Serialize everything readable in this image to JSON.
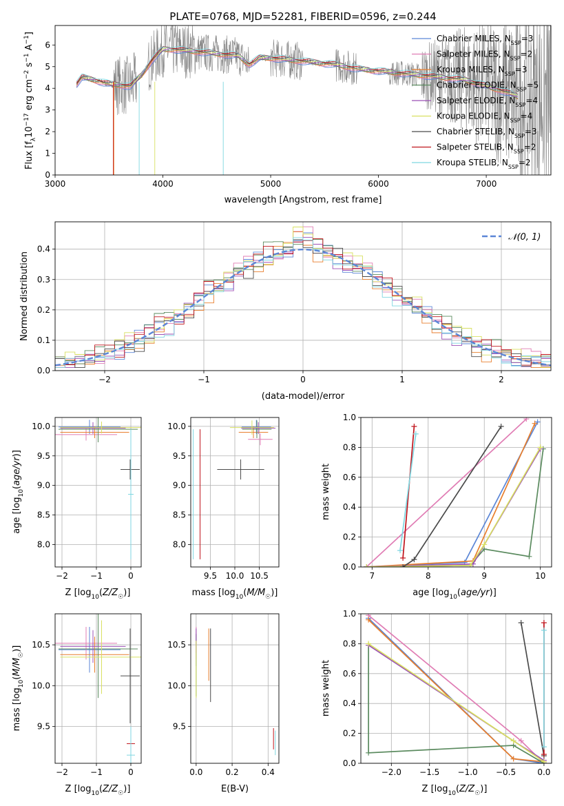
{
  "colors": {
    "chabrier_miles": "#5b86d6",
    "salpeter_miles": "#e07cb4",
    "kroupa_miles": "#e87e2c",
    "chabrier_elodie": "#5a8a5e",
    "salpeter_elodie": "#9b4fb5",
    "kroupa_elodie": "#d8e060",
    "chabrier_stelib": "#4a4a4a",
    "salpeter_stelib": "#c0141c",
    "kroupa_stelib": "#7ed6e0",
    "data_spectrum": "#808080",
    "gauss": "#5b86d6"
  },
  "chart_data": [
    {
      "type": "line",
      "title": "PLATE=0768, MJD=52281, FIBERID=0596, z=0.244",
      "xlabel": "wavelength [Angstrom, rest frame]",
      "ylabel": "Flux [f_λ 10^-17 erg cm^-2 s^-1 A^-1]",
      "xlim": [
        3000,
        7600
      ],
      "ylim": [
        0,
        6.9
      ],
      "xticks": [
        3000,
        4000,
        5000,
        6000,
        7000
      ],
      "yticks": [
        0,
        1,
        2,
        3,
        4,
        5,
        6
      ],
      "legend_position": "top-right",
      "continuum_knots": {
        "x": [
          3200,
          3250,
          3350,
          3500,
          3700,
          3800,
          3900,
          4000,
          4100,
          4300,
          4500,
          4700,
          4800,
          4900,
          5000,
          5200,
          5400,
          5600,
          5800,
          6000,
          6200,
          6400,
          6600,
          6800,
          7000,
          7200,
          7300
        ],
        "y": [
          4.2,
          4.5,
          4.4,
          4.2,
          4.1,
          4.6,
          5.3,
          5.8,
          5.8,
          5.7,
          5.6,
          5.5,
          5.1,
          5.4,
          5.4,
          5.3,
          5.2,
          5.1,
          4.9,
          4.8,
          4.7,
          4.6,
          4.5,
          4.4,
          4.1,
          3.8,
          3.6
        ]
      },
      "series": [
        {
          "name": "Chabrier MILES, N_SSP=3",
          "color_key": "chabrier_miles"
        },
        {
          "name": "Salpeter MILES, N_SSP=2",
          "color_key": "salpeter_miles"
        },
        {
          "name": "Kroupa MILES, N_SSP=3",
          "color_key": "kroupa_miles"
        },
        {
          "name": "Chabrier ELODIE, N_SSP=5",
          "color_key": "chabrier_elodie"
        },
        {
          "name": "Salpeter ELODIE, N_SSP=4",
          "color_key": "salpeter_elodie"
        },
        {
          "name": "Kroupa ELODIE, N_SSP=4",
          "color_key": "kroupa_elodie"
        },
        {
          "name": "Chabrier STELIB, N_SSP=3",
          "color_key": "chabrier_stelib"
        },
        {
          "name": "Salpeter STELIB, N_SSP=2",
          "color_key": "salpeter_stelib"
        },
        {
          "name": "Kroupa STELIB, N_SSP=2",
          "color_key": "kroupa_stelib"
        }
      ]
    },
    {
      "type": "histogram",
      "xlabel": "(data-model)/error",
      "ylabel": "Normed distribution",
      "xlim": [
        -2.5,
        2.5
      ],
      "ylim": [
        0,
        0.49
      ],
      "xticks": [
        -2,
        -1,
        0,
        1,
        2
      ],
      "yticks": [
        0.0,
        0.1,
        0.2,
        0.3,
        0.4
      ],
      "bin_width": 0.1,
      "legend_position": "top-right",
      "gaussian_label": "𝒩(0, 1)",
      "histograms": [
        {
          "color_key": "chabrier_miles",
          "shift": 0.0
        },
        {
          "color_key": "salpeter_miles",
          "shift": 0.008
        },
        {
          "color_key": "kroupa_miles",
          "shift": -0.006
        },
        {
          "color_key": "chabrier_elodie",
          "shift": 0.012
        },
        {
          "color_key": "salpeter_elodie",
          "shift": -0.01
        },
        {
          "color_key": "kroupa_elodie",
          "shift": 0.004
        },
        {
          "color_key": "chabrier_stelib",
          "shift": -0.004
        },
        {
          "color_key": "salpeter_stelib",
          "shift": 0.006
        },
        {
          "color_key": "kroupa_stelib",
          "shift": -0.008
        }
      ]
    },
    {
      "type": "scatter",
      "xlabel": "Z [log10(Z/Z☉)]",
      "ylabel": "age [log10(age/yr)]",
      "xlim": [
        -2.2,
        0.3
      ],
      "ylim": [
        7.62,
        10.15
      ],
      "xticks": [
        -2,
        -1,
        0
      ],
      "yticks": [
        8.0,
        8.5,
        9.0,
        9.5,
        10.0
      ],
      "points": [
        {
          "x": -1.2,
          "xerr": 0.9,
          "y": 9.99,
          "yerr": 0.12,
          "color_key": "chabrier_miles"
        },
        {
          "x": -1.3,
          "xerr": 0.9,
          "y": 9.86,
          "yerr": 0.1,
          "color_key": "salpeter_miles"
        },
        {
          "x": -1.05,
          "xerr": 1.0,
          "y": 9.9,
          "yerr": 0.1,
          "color_key": "kroupa_miles"
        },
        {
          "x": -0.95,
          "xerr": 1.15,
          "y": 9.95,
          "yerr": 0.22,
          "color_key": "chabrier_elodie"
        },
        {
          "x": -1.1,
          "xerr": 0.95,
          "y": 9.97,
          "yerr": 0.1,
          "color_key": "salpeter_elodie"
        },
        {
          "x": -0.85,
          "xerr": 1.2,
          "y": 9.98,
          "yerr": 0.1,
          "color_key": "kroupa_elodie"
        },
        {
          "x": -0.02,
          "xerr": 0.28,
          "y": 9.27,
          "yerr": 0.17,
          "color_key": "chabrier_stelib"
        },
        {
          "x": 0.0,
          "xerr": 0.0,
          "y": 7.75,
          "yerr": 0.0,
          "color_key": "salpeter_stelib"
        },
        {
          "x": 0.0,
          "xerr": 0.08,
          "y": 8.85,
          "yerr": 1.1,
          "color_key": "kroupa_stelib"
        }
      ]
    },
    {
      "type": "scatter",
      "xlabel": "mass [log10(M/M☉)]",
      "ylabel": "",
      "xlim": [
        9.1,
        10.9
      ],
      "ylim": [
        7.62,
        10.15
      ],
      "xticks": [
        9.5,
        10.0,
        10.5
      ],
      "yticks": [
        8.0,
        8.5,
        9.0,
        9.5,
        10.0
      ],
      "points": [
        {
          "x": 10.44,
          "xerr": 0.3,
          "y": 9.99,
          "yerr": 0.12,
          "color_key": "chabrier_miles"
        },
        {
          "x": 10.52,
          "xerr": 0.25,
          "y": 9.78,
          "yerr": 0.1,
          "color_key": "salpeter_miles"
        },
        {
          "x": 10.38,
          "xerr": 0.3,
          "y": 9.9,
          "yerr": 0.1,
          "color_key": "kroupa_miles"
        },
        {
          "x": 10.45,
          "xerr": 0.3,
          "y": 9.95,
          "yerr": 0.15,
          "color_key": "chabrier_elodie"
        },
        {
          "x": 10.48,
          "xerr": 0.35,
          "y": 9.97,
          "yerr": 0.1,
          "color_key": "salpeter_elodie"
        },
        {
          "x": 10.35,
          "xerr": 0.45,
          "y": 9.98,
          "yerr": 0.12,
          "color_key": "kroupa_elodie"
        },
        {
          "x": 10.12,
          "xerr": 0.48,
          "y": 9.27,
          "yerr": 0.17,
          "color_key": "chabrier_stelib"
        },
        {
          "x": 9.29,
          "xerr": 0.0,
          "y": 8.85,
          "yerr": 1.1,
          "color_key": "salpeter_stelib"
        },
        {
          "x": 9.15,
          "xerr": 0.0,
          "y": 8.85,
          "yerr": 1.1,
          "color_key": "kroupa_stelib"
        }
      ]
    },
    {
      "type": "line",
      "xlabel": "age [log10(age/yr)]",
      "ylabel": "mass weight",
      "xlim": [
        6.8,
        10.2
      ],
      "ylim": [
        0,
        1
      ],
      "xticks": [
        7,
        8,
        9,
        10
      ],
      "yticks": [
        0.0,
        0.2,
        0.4,
        0.6,
        0.8,
        1.0
      ],
      "series": [
        {
          "color_key": "chabrier_miles",
          "x": [
            6.9,
            8.65,
            9.95
          ],
          "y": [
            0.0,
            0.03,
            0.97
          ]
        },
        {
          "color_key": "salpeter_miles",
          "x": [
            6.9,
            9.75
          ],
          "y": [
            0.0,
            0.99
          ]
        },
        {
          "color_key": "kroupa_miles",
          "x": [
            6.9,
            8.8,
            9.9
          ],
          "y": [
            0.0,
            0.04,
            0.96
          ]
        },
        {
          "color_key": "chabrier_elodie",
          "x": [
            6.9,
            8.75,
            9.0,
            9.8,
            10.05
          ],
          "y": [
            0.0,
            0.01,
            0.12,
            0.07,
            0.79
          ]
        },
        {
          "color_key": "salpeter_elodie",
          "x": [
            6.9,
            8.8,
            10.0
          ],
          "y": [
            0.0,
            0.02,
            0.79
          ]
        },
        {
          "color_key": "kroupa_elodie",
          "x": [
            6.9,
            8.75,
            9.0,
            10.0
          ],
          "y": [
            0.0,
            0.01,
            0.15,
            0.8
          ]
        },
        {
          "color_key": "chabrier_stelib",
          "x": [
            7.55,
            7.75,
            9.3
          ],
          "y": [
            0.0,
            0.05,
            0.94
          ]
        },
        {
          "color_key": "salpeter_stelib",
          "x": [
            7.55,
            7.75
          ],
          "y": [
            0.06,
            0.94
          ]
        },
        {
          "color_key": "kroupa_stelib",
          "x": [
            7.5,
            7.78
          ],
          "y": [
            0.11,
            0.89
          ]
        }
      ]
    },
    {
      "type": "scatter",
      "xlabel": "Z [log10(Z/Z☉)]",
      "ylabel": "mass [log10(M/M☉)]",
      "xlim": [
        -2.2,
        0.3
      ],
      "ylim": [
        9.05,
        10.88
      ],
      "xticks": [
        -2,
        -1,
        0
      ],
      "yticks": [
        9.5,
        10.0,
        10.5
      ],
      "points": [
        {
          "x": -1.2,
          "xerr": 0.9,
          "y": 10.44,
          "yerr": 0.28,
          "color_key": "chabrier_miles"
        },
        {
          "x": -1.3,
          "xerr": 0.9,
          "y": 10.52,
          "yerr": 0.2,
          "color_key": "salpeter_miles"
        },
        {
          "x": -1.05,
          "xerr": 1.0,
          "y": 10.38,
          "yerr": 0.22,
          "color_key": "kroupa_miles"
        },
        {
          "x": -0.95,
          "xerr": 1.15,
          "y": 10.45,
          "yerr": 0.6,
          "color_key": "chabrier_elodie"
        },
        {
          "x": -1.1,
          "xerr": 0.95,
          "y": 10.48,
          "yerr": 0.2,
          "color_key": "salpeter_elodie"
        },
        {
          "x": -0.85,
          "xerr": 1.2,
          "y": 10.35,
          "yerr": 0.45,
          "color_key": "kroupa_elodie"
        },
        {
          "x": -0.02,
          "xerr": 0.28,
          "y": 10.12,
          "yerr": 0.58,
          "color_key": "chabrier_stelib"
        },
        {
          "x": 0.0,
          "xerr": 0.12,
          "y": 9.29,
          "yerr": 0.0,
          "color_key": "salpeter_stelib"
        },
        {
          "x": 0.0,
          "xerr": 0.12,
          "y": 9.15,
          "yerr": 0.35,
          "color_key": "kroupa_stelib"
        }
      ]
    },
    {
      "type": "scatter",
      "xlabel": "E(B-V)",
      "ylabel": "",
      "xlim": [
        -0.03,
        0.46
      ],
      "ylim": [
        9.05,
        10.88
      ],
      "xticks": [
        0.0,
        0.2,
        0.4
      ],
      "yticks": [
        9.5,
        10.0,
        10.5
      ],
      "points": [
        {
          "x": 0.0,
          "xerr": 0.0,
          "y": 10.44,
          "yerr": 0.2,
          "color_key": "chabrier_miles"
        },
        {
          "x": 0.0,
          "xerr": 0.0,
          "y": 10.52,
          "yerr": 0.2,
          "color_key": "salpeter_miles"
        },
        {
          "x": 0.07,
          "xerr": 0.0,
          "y": 10.38,
          "yerr": 0.32,
          "color_key": "kroupa_miles"
        },
        {
          "x": 0.0,
          "xerr": 0.0,
          "y": 10.25,
          "yerr": 0.38,
          "color_key": "chabrier_elodie"
        },
        {
          "x": 0.0,
          "xerr": 0.0,
          "y": 10.55,
          "yerr": 0.15,
          "color_key": "salpeter_elodie"
        },
        {
          "x": 0.0,
          "xerr": 0.0,
          "y": 10.2,
          "yerr": 0.35,
          "color_key": "kroupa_elodie"
        },
        {
          "x": 0.08,
          "xerr": 0.0,
          "y": 10.25,
          "yerr": 0.45,
          "color_key": "chabrier_stelib"
        },
        {
          "x": 0.43,
          "xerr": 0.0,
          "y": 9.35,
          "yerr": 0.13,
          "color_key": "salpeter_stelib"
        },
        {
          "x": 0.44,
          "xerr": 0.0,
          "y": 9.3,
          "yerr": 0.15,
          "color_key": "kroupa_stelib"
        }
      ]
    },
    {
      "type": "line",
      "xlabel": "Z [log10(Z/Z☉)]",
      "ylabel": "mass weight",
      "xlim": [
        -2.4,
        0.1
      ],
      "ylim": [
        0,
        1
      ],
      "xticks": [
        -2.0,
        -1.5,
        -1.0,
        -0.5,
        0.0
      ],
      "yticks": [
        0.0,
        0.2,
        0.4,
        0.6,
        0.8,
        1.0
      ],
      "series": [
        {
          "color_key": "chabrier_miles",
          "x": [
            -2.3,
            -0.4,
            0.0
          ],
          "y": [
            0.97,
            0.03,
            0.0
          ]
        },
        {
          "color_key": "salpeter_miles",
          "x": [
            -2.3,
            -0.3,
            0.0
          ],
          "y": [
            0.99,
            0.15,
            0.0
          ]
        },
        {
          "color_key": "kroupa_miles",
          "x": [
            -2.3,
            -0.4,
            0.0
          ],
          "y": [
            0.96,
            0.03,
            0.01
          ]
        },
        {
          "color_key": "chabrier_elodie",
          "x": [
            -2.3,
            -2.3,
            -0.4,
            0.0
          ],
          "y": [
            0.79,
            0.07,
            0.12,
            0.0
          ]
        },
        {
          "color_key": "salpeter_elodie",
          "x": [
            -2.3,
            -0.4,
            0.0
          ],
          "y": [
            0.79,
            0.15,
            0.02
          ]
        },
        {
          "color_key": "kroupa_elodie",
          "x": [
            -2.3,
            -0.4,
            0.0
          ],
          "y": [
            0.8,
            0.15,
            0.01
          ]
        },
        {
          "color_key": "chabrier_stelib",
          "x": [
            -0.3,
            0.0
          ],
          "y": [
            0.94,
            0.05
          ]
        },
        {
          "color_key": "salpeter_stelib",
          "x": [
            0.0,
            0.0
          ],
          "y": [
            0.94,
            0.06
          ]
        },
        {
          "color_key": "kroupa_stelib",
          "x": [
            0.0,
            0.0
          ],
          "y": [
            0.89,
            0.11
          ]
        }
      ]
    }
  ]
}
